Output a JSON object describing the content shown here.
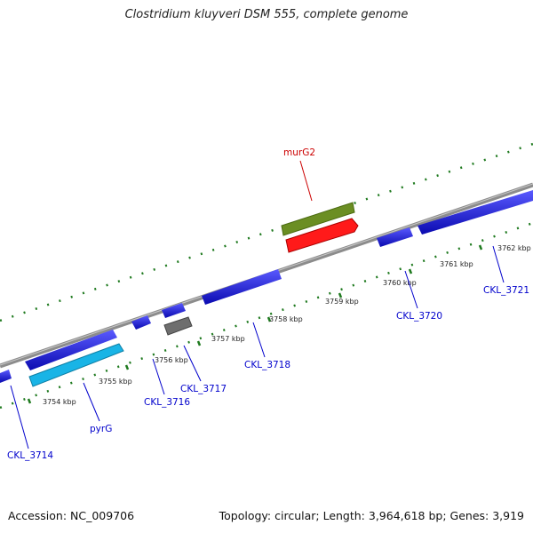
{
  "title": "Clostridium kluyveri DSM 555, complete genome",
  "footer": {
    "accession": "Accession: NC_009706",
    "summary": "Topology: circular; Length: 3,964,618 bp; Genes: 3,919"
  },
  "scale_labels": [
    "3754 kbp",
    "3755 kbp",
    "3756 kbp",
    "3757 kbp",
    "3758 kbp",
    "3759 kbp",
    "3760 kbp",
    "3761 kbp",
    "3762 kbp"
  ],
  "gene_labels": [
    {
      "text": "murG2",
      "color": "#cc0000"
    },
    {
      "text": "CKL_3714",
      "color": "#0000cc"
    },
    {
      "text": "pyrG",
      "color": "#0000cc"
    },
    {
      "text": "CKL_3716",
      "color": "#0000cc"
    },
    {
      "text": "CKL_3717",
      "color": "#0000cc"
    },
    {
      "text": "CKL_3718",
      "color": "#0000cc"
    },
    {
      "text": "CKL_3720",
      "color": "#0000cc"
    },
    {
      "text": "CKL_3721",
      "color": "#0000cc"
    }
  ],
  "colors": {
    "backbone": "#8c8c8c",
    "tick": "#1f7a1f",
    "gene_forward": "#1a1ae6",
    "gene_cyan": "#19b4e6",
    "gene_gray": "#6e6e6e",
    "gene_olive": "#6b8e23",
    "gene_red": "#ff1a1a"
  }
}
